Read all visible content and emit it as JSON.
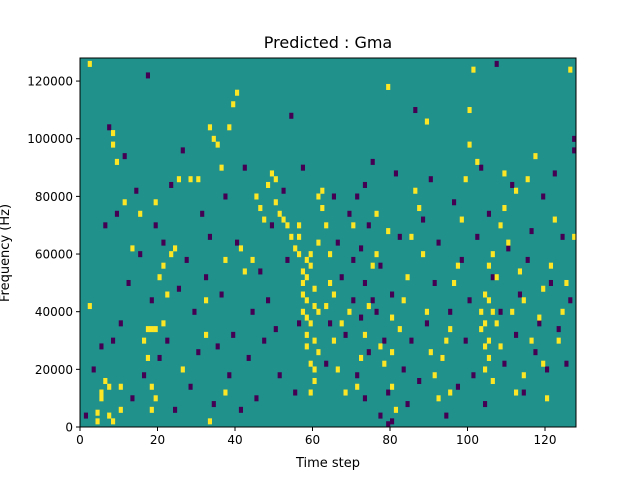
{
  "chart_data": {
    "type": "heatmap",
    "title": "Predicted : Gma",
    "xlabel": "Time step",
    "ylabel": "Frequency (Hz)",
    "xlim": [
      0,
      128
    ],
    "ylim": [
      0,
      128000
    ],
    "x_ticks": [
      0,
      20,
      40,
      60,
      80,
      100,
      120
    ],
    "y_ticks": [
      0,
      20000,
      40000,
      60000,
      80000,
      100000,
      120000
    ],
    "x_tick_labels": [
      "0",
      "20",
      "40",
      "60",
      "80",
      "100",
      "120"
    ],
    "y_tick_labels": [
      "0",
      "20000",
      "40000",
      "60000",
      "80000",
      "100000",
      "120000"
    ],
    "n_time_steps": 128,
    "n_freq_bins": 128,
    "colormap": {
      "low": "#440154",
      "mid": "#21918c",
      "high": "#fde725"
    },
    "default_level": 0,
    "high_cells": [
      [
        2,
        126
      ],
      [
        2,
        42
      ],
      [
        4,
        5
      ],
      [
        4,
        2
      ],
      [
        5,
        10
      ],
      [
        5,
        12
      ],
      [
        6,
        16
      ],
      [
        7,
        4
      ],
      [
        7,
        14
      ],
      [
        8,
        102
      ],
      [
        8,
        2
      ],
      [
        8,
        98
      ],
      [
        9,
        92
      ],
      [
        10,
        6
      ],
      [
        10,
        14
      ],
      [
        11,
        78
      ],
      [
        13,
        62
      ],
      [
        15,
        74
      ],
      [
        16,
        30
      ],
      [
        17,
        24
      ],
      [
        17,
        34
      ],
      [
        18,
        34
      ],
      [
        18,
        14
      ],
      [
        18,
        6
      ],
      [
        19,
        10
      ],
      [
        19,
        78
      ],
      [
        19,
        34
      ],
      [
        20,
        52
      ],
      [
        21,
        56
      ],
      [
        21,
        36
      ],
      [
        22,
        46
      ],
      [
        23,
        60
      ],
      [
        24,
        62
      ],
      [
        25,
        86
      ],
      [
        26,
        20
      ],
      [
        28,
        86
      ],
      [
        30,
        86
      ],
      [
        32,
        44
      ],
      [
        32,
        32
      ],
      [
        33,
        104
      ],
      [
        33,
        2
      ],
      [
        34,
        100
      ],
      [
        35,
        98
      ],
      [
        36,
        90
      ],
      [
        37,
        12
      ],
      [
        37,
        58
      ],
      [
        38,
        104
      ],
      [
        39,
        112
      ],
      [
        40,
        116
      ],
      [
        41,
        62
      ],
      [
        42,
        54
      ],
      [
        44,
        58
      ],
      [
        45,
        80
      ],
      [
        46,
        76
      ],
      [
        47,
        72
      ],
      [
        48,
        84
      ],
      [
        49,
        88
      ],
      [
        50,
        86
      ],
      [
        50,
        78
      ],
      [
        51,
        74
      ],
      [
        52,
        72
      ],
      [
        53,
        70
      ],
      [
        54,
        66
      ],
      [
        55,
        62
      ],
      [
        56,
        60
      ],
      [
        56,
        66
      ],
      [
        56,
        70
      ],
      [
        57,
        54
      ],
      [
        57,
        50
      ],
      [
        57,
        46
      ],
      [
        57,
        40
      ],
      [
        58,
        58
      ],
      [
        58,
        52
      ],
      [
        58,
        44
      ],
      [
        58,
        38
      ],
      [
        58,
        32
      ],
      [
        58,
        28
      ],
      [
        59,
        60
      ],
      [
        59,
        56
      ],
      [
        59,
        36
      ],
      [
        59,
        22
      ],
      [
        59,
        12
      ],
      [
        60,
        48
      ],
      [
        60,
        42
      ],
      [
        60,
        30
      ],
      [
        60,
        20
      ],
      [
        60,
        16
      ],
      [
        61,
        80
      ],
      [
        61,
        64
      ],
      [
        61,
        40
      ],
      [
        61,
        26
      ],
      [
        62,
        82
      ],
      [
        62,
        76
      ],
      [
        63,
        70
      ],
      [
        63,
        42
      ],
      [
        64,
        60
      ],
      [
        64,
        50
      ],
      [
        65,
        46
      ],
      [
        65,
        30
      ],
      [
        66,
        20
      ],
      [
        67,
        36
      ],
      [
        68,
        12
      ],
      [
        69,
        40
      ],
      [
        70,
        70
      ],
      [
        71,
        14
      ],
      [
        72,
        24
      ],
      [
        73,
        32
      ],
      [
        74,
        42
      ],
      [
        75,
        56
      ],
      [
        76,
        60
      ],
      [
        76,
        74
      ],
      [
        77,
        28
      ],
      [
        78,
        22
      ],
      [
        79,
        118
      ],
      [
        79,
        68
      ],
      [
        80,
        38
      ],
      [
        80,
        26
      ],
      [
        80,
        14
      ],
      [
        81,
        6
      ],
      [
        82,
        34
      ],
      [
        83,
        44
      ],
      [
        84,
        52
      ],
      [
        85,
        66
      ],
      [
        86,
        82
      ],
      [
        87,
        76
      ],
      [
        88,
        60
      ],
      [
        89,
        106
      ],
      [
        89,
        40
      ],
      [
        90,
        26
      ],
      [
        91,
        18
      ],
      [
        92,
        10
      ],
      [
        93,
        24
      ],
      [
        94,
        30
      ],
      [
        95,
        34
      ],
      [
        95,
        12
      ],
      [
        96,
        50
      ],
      [
        97,
        56
      ],
      [
        98,
        72
      ],
      [
        99,
        86
      ],
      [
        100,
        98
      ],
      [
        100,
        110
      ],
      [
        101,
        124
      ],
      [
        102,
        92
      ],
      [
        103,
        40
      ],
      [
        103,
        34
      ],
      [
        104,
        46
      ],
      [
        104,
        36
      ],
      [
        104,
        28
      ],
      [
        104,
        20
      ],
      [
        105,
        56
      ],
      [
        105,
        44
      ],
      [
        105,
        30
      ],
      [
        105,
        24
      ],
      [
        106,
        60
      ],
      [
        106,
        40
      ],
      [
        106,
        16
      ],
      [
        107,
        52
      ],
      [
        107,
        36
      ],
      [
        108,
        70
      ],
      [
        108,
        28
      ],
      [
        109,
        88
      ],
      [
        109,
        76
      ],
      [
        110,
        64
      ],
      [
        111,
        40
      ],
      [
        112,
        82
      ],
      [
        112,
        12
      ],
      [
        113,
        54
      ],
      [
        114,
        44
      ],
      [
        114,
        18
      ],
      [
        115,
        86
      ],
      [
        116,
        30
      ],
      [
        117,
        94
      ],
      [
        118,
        38
      ],
      [
        119,
        48
      ],
      [
        119,
        22
      ],
      [
        120,
        10
      ],
      [
        121,
        56
      ],
      [
        122,
        72
      ],
      [
        123,
        30
      ],
      [
        124,
        40
      ],
      [
        125,
        50
      ],
      [
        126,
        124
      ],
      [
        127,
        66
      ]
    ],
    "low_cells": [
      [
        1,
        4
      ],
      [
        3,
        20
      ],
      [
        5,
        28
      ],
      [
        6,
        70
      ],
      [
        7,
        104
      ],
      [
        8,
        30
      ],
      [
        9,
        74
      ],
      [
        10,
        36
      ],
      [
        11,
        94
      ],
      [
        12,
        50
      ],
      [
        13,
        10
      ],
      [
        14,
        82
      ],
      [
        15,
        60
      ],
      [
        16,
        18
      ],
      [
        17,
        122
      ],
      [
        18,
        44
      ],
      [
        19,
        70
      ],
      [
        20,
        24
      ],
      [
        21,
        64
      ],
      [
        22,
        30
      ],
      [
        23,
        84
      ],
      [
        24,
        6
      ],
      [
        25,
        48
      ],
      [
        26,
        96
      ],
      [
        27,
        58
      ],
      [
        28,
        14
      ],
      [
        29,
        40
      ],
      [
        30,
        26
      ],
      [
        31,
        74
      ],
      [
        32,
        52
      ],
      [
        33,
        66
      ],
      [
        34,
        8
      ],
      [
        35,
        28
      ],
      [
        36,
        46
      ],
      [
        37,
        80
      ],
      [
        38,
        18
      ],
      [
        39,
        32
      ],
      [
        40,
        64
      ],
      [
        41,
        6
      ],
      [
        42,
        90
      ],
      [
        43,
        24
      ],
      [
        44,
        40
      ],
      [
        45,
        10
      ],
      [
        46,
        54
      ],
      [
        47,
        30
      ],
      [
        48,
        44
      ],
      [
        49,
        70
      ],
      [
        50,
        34
      ],
      [
        51,
        18
      ],
      [
        52,
        82
      ],
      [
        53,
        58
      ],
      [
        54,
        108
      ],
      [
        55,
        12
      ],
      [
        56,
        36
      ],
      [
        57,
        90
      ],
      [
        63,
        22
      ],
      [
        64,
        36
      ],
      [
        65,
        80
      ],
      [
        66,
        64
      ],
      [
        67,
        52
      ],
      [
        68,
        32
      ],
      [
        69,
        74
      ],
      [
        70,
        58
      ],
      [
        70,
        44
      ],
      [
        71,
        80
      ],
      [
        71,
        18
      ],
      [
        72,
        62
      ],
      [
        72,
        38
      ],
      [
        73,
        84
      ],
      [
        73,
        50
      ],
      [
        73,
        10
      ],
      [
        74,
        70
      ],
      [
        74,
        26
      ],
      [
        75,
        92
      ],
      [
        75,
        44
      ],
      [
        76,
        40
      ],
      [
        77,
        56
      ],
      [
        77,
        4
      ],
      [
        78,
        30
      ],
      [
        79,
        12
      ],
      [
        79,
        1
      ],
      [
        80,
        2
      ],
      [
        80,
        46
      ],
      [
        81,
        88
      ],
      [
        82,
        66
      ],
      [
        83,
        20
      ],
      [
        84,
        8
      ],
      [
        85,
        30
      ],
      [
        86,
        110
      ],
      [
        87,
        16
      ],
      [
        88,
        72
      ],
      [
        89,
        36
      ],
      [
        90,
        86
      ],
      [
        91,
        50
      ],
      [
        92,
        64
      ],
      [
        93,
        24
      ],
      [
        94,
        4
      ],
      [
        95,
        40
      ],
      [
        96,
        78
      ],
      [
        97,
        14
      ],
      [
        98,
        58
      ],
      [
        99,
        30
      ],
      [
        100,
        44
      ],
      [
        101,
        18
      ],
      [
        102,
        66
      ],
      [
        103,
        90
      ],
      [
        104,
        8
      ],
      [
        105,
        74
      ],
      [
        106,
        52
      ],
      [
        107,
        126
      ],
      [
        108,
        40
      ],
      [
        109,
        22
      ],
      [
        110,
        62
      ],
      [
        111,
        84
      ],
      [
        112,
        32
      ],
      [
        113,
        46
      ],
      [
        114,
        12
      ],
      [
        115,
        58
      ],
      [
        116,
        68
      ],
      [
        117,
        26
      ],
      [
        118,
        36
      ],
      [
        119,
        80
      ],
      [
        120,
        20
      ],
      [
        121,
        50
      ],
      [
        122,
        88
      ],
      [
        123,
        34
      ],
      [
        124,
        66
      ],
      [
        125,
        22
      ],
      [
        126,
        44
      ],
      [
        127,
        100
      ],
      [
        127,
        96
      ]
    ]
  }
}
